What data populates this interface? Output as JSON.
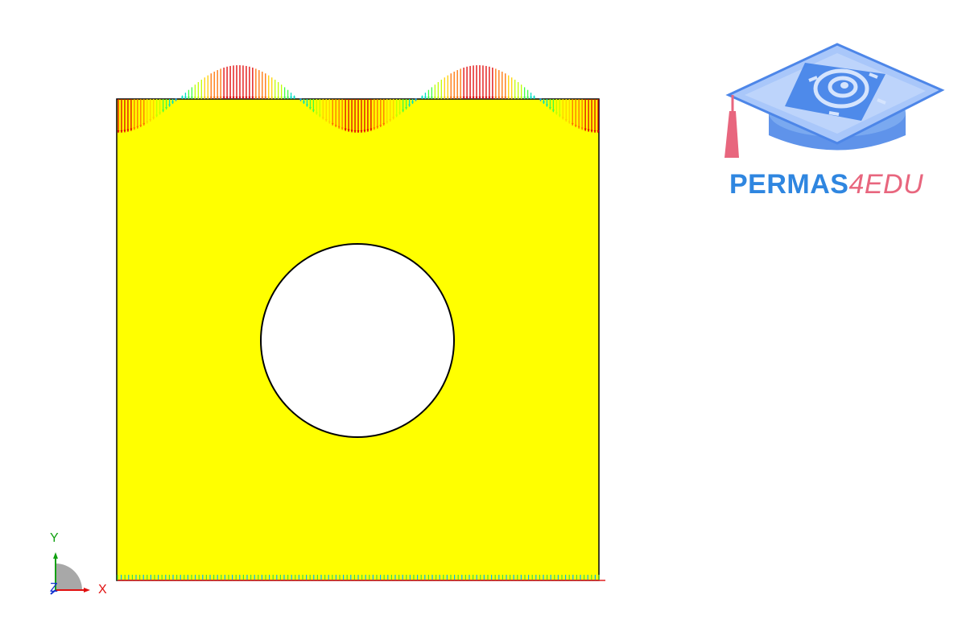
{
  "logo": {
    "brand": "PERMAS",
    "suffix": "4EDU",
    "brand_color": "#2f86e0",
    "suffix_color": "#e8667e"
  },
  "triad": {
    "x_label": "X",
    "y_label": "Y",
    "z_label": "Z",
    "x_color": "#e01010",
    "y_color": "#10a010",
    "z_color": "#1030d0"
  },
  "model": {
    "plate_color": "#ffff00",
    "hole_color": "#ffffff",
    "edge_color": "#000000"
  },
  "load": {
    "color_scale": [
      "#00a0ff",
      "#00e0c0",
      "#40ff40",
      "#c0ff00",
      "#ffd000",
      "#ff7000",
      "#e00000"
    ],
    "periods": 2
  }
}
